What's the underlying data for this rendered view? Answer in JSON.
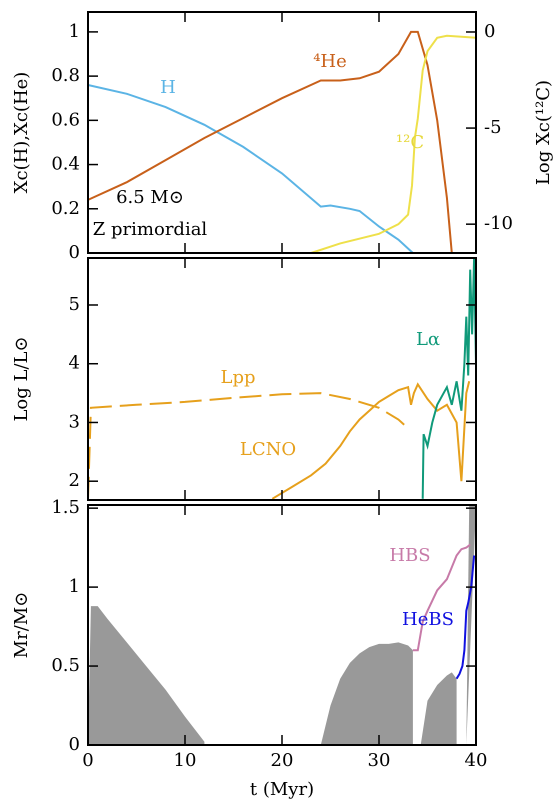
{
  "chart_data": [
    {
      "type": "line",
      "ylabel": "Xc(H),Xc(He)",
      "y2label": "Log Xc(¹²C)",
      "ylim": [
        0,
        1.09
      ],
      "yticks": [
        0,
        0.2,
        0.4,
        0.6,
        0.8,
        1
      ],
      "y2lim": [
        -11.5,
        1.04
      ],
      "y2ticks": [
        0,
        -5,
        -10
      ],
      "annotations": [
        {
          "text": "H",
          "color": "#5bb4e5"
        },
        {
          "text": "⁴He",
          "color": "#c8601a"
        },
        {
          "text": "¹²C",
          "color": "#e6d83c"
        },
        {
          "text": "6.5 M⊙",
          "color": "#000000"
        },
        {
          "text": "Z primordial",
          "color": "#000000"
        }
      ],
      "series": [
        {
          "color": "#5bb4e5",
          "x": [
            0,
            4,
            8,
            12,
            16,
            20,
            24,
            25,
            27,
            28,
            30,
            32,
            33.5
          ],
          "values": [
            0.76,
            0.72,
            0.66,
            0.58,
            0.48,
            0.36,
            0.21,
            0.215,
            0.2,
            0.19,
            0.12,
            0.06,
            0
          ]
        },
        {
          "color": "#c8601a",
          "x": [
            0,
            4,
            8,
            12,
            16,
            20,
            24,
            26,
            28,
            30,
            32,
            33.3,
            34,
            35,
            36,
            37,
            37.5
          ],
          "values": [
            0.24,
            0.32,
            0.42,
            0.52,
            0.61,
            0.7,
            0.78,
            0.78,
            0.79,
            0.82,
            0.9,
            1,
            1,
            0.85,
            0.6,
            0.25,
            0
          ]
        },
        {
          "color": "#eee04a",
          "axis": "y2",
          "x": [
            23,
            26,
            30,
            32,
            33,
            33.4,
            33.7,
            34,
            34.5,
            35,
            36,
            37,
            40
          ],
          "values": [
            -11.5,
            -11,
            -10.5,
            -10,
            -9.5,
            -8,
            -5.5,
            -4.5,
            -2,
            -1,
            -0.3,
            -0.2,
            -0.3
          ]
        }
      ]
    },
    {
      "type": "line",
      "ylabel": "Log L/L⊙",
      "ylim": [
        1.68,
        5.8
      ],
      "yticks": [
        2,
        3,
        4,
        5
      ],
      "annotations": [
        {
          "text": "Lpp",
          "color": "#e6a01c"
        },
        {
          "text": "LCNO",
          "color": "#e6a01c"
        },
        {
          "text": "Lα",
          "color": "#109a7a"
        }
      ],
      "series": [
        {
          "color": "#e6a01c",
          "dashed": true,
          "x": [
            0,
            0.3,
            5,
            10,
            15,
            20,
            24,
            27,
            30,
            31,
            32,
            33
          ],
          "values": [
            1.7,
            3.25,
            3.3,
            3.35,
            3.42,
            3.48,
            3.5,
            3.4,
            3.25,
            3.15,
            3.05,
            2.9
          ]
        },
        {
          "color": "#e6a01c",
          "x": [
            19,
            21,
            23,
            24.5,
            26,
            27,
            28,
            29,
            30,
            31,
            32,
            33,
            33.3,
            33.6,
            34,
            35,
            36,
            37,
            38,
            38.5,
            39,
            39.3
          ],
          "values": [
            1.7,
            1.9,
            2.1,
            2.3,
            2.6,
            2.85,
            3.05,
            3.2,
            3.35,
            3.45,
            3.55,
            3.6,
            3.3,
            3.5,
            3.65,
            3.4,
            3.2,
            3.3,
            3,
            2,
            3.5,
            3.7
          ]
        },
        {
          "color": "#109a7a",
          "x": [
            34.5,
            34.6,
            35,
            35.5,
            36,
            37,
            37.5,
            38,
            38.5,
            38.8,
            39,
            39.2,
            39.4,
            39.6,
            39.8,
            40
          ],
          "values": [
            1.7,
            2.8,
            2.6,
            3,
            3.3,
            3.6,
            3.3,
            3.7,
            3.2,
            4,
            4.8,
            3.8,
            5.6,
            4.5,
            5.8,
            4
          ]
        }
      ]
    },
    {
      "type": "line",
      "ylabel": "Mr/M⊙",
      "xlabel": "t (Myr)",
      "xlim": [
        0,
        40
      ],
      "xticks": [
        0,
        10,
        20,
        30,
        40
      ],
      "ylim": [
        0,
        1.52
      ],
      "yticks": [
        0,
        0.5,
        1,
        1.5
      ],
      "annotations": [
        {
          "text": "HBS",
          "color": "#c77aa8"
        },
        {
          "text": "HeBS",
          "color": "#1010e0"
        }
      ],
      "series": [
        {
          "color": "#999999",
          "fill": true,
          "x": [
            0,
            0.3,
            1,
            2,
            4,
            6,
            8,
            10,
            12,
            12
          ],
          "values": [
            0,
            0.88,
            0.88,
            0.8,
            0.65,
            0.5,
            0.35,
            0.18,
            0.02,
            0
          ]
        },
        {
          "color": "#999999",
          "fill": true,
          "x": [
            24,
            25,
            26,
            27,
            28,
            29,
            30,
            31,
            32,
            33,
            33.5,
            33.5
          ],
          "values": [
            0,
            0.25,
            0.42,
            0.52,
            0.58,
            0.62,
            0.64,
            0.64,
            0.65,
            0.63,
            0.6,
            0
          ]
        },
        {
          "color": "#999999",
          "fill": true,
          "x": [
            34.3,
            35,
            36,
            37,
            37.5,
            38,
            38
          ],
          "values": [
            0,
            0.28,
            0.38,
            0.44,
            0.46,
            0.42,
            0
          ]
        },
        {
          "color": "#999999",
          "fill": true,
          "x": [
            39,
            39.3,
            39.6,
            40
          ],
          "values": [
            0,
            1.52,
            1.52,
            1.52
          ]
        },
        {
          "color": "#c77aa8",
          "x": [
            33.5,
            34,
            34.5,
            35,
            36,
            37,
            38,
            38.5,
            39,
            39.4
          ],
          "values": [
            0.6,
            0.6,
            0.78,
            0.85,
            0.98,
            1.05,
            1.2,
            1.24,
            1.25,
            1.27
          ]
        },
        {
          "color": "#1010e0",
          "x": [
            38,
            38.3,
            38.6,
            38.8,
            39,
            39.2,
            39.5,
            39.8
          ],
          "values": [
            0.42,
            0.45,
            0.5,
            0.6,
            0.85,
            0.9,
            1,
            1.2
          ]
        }
      ]
    }
  ]
}
